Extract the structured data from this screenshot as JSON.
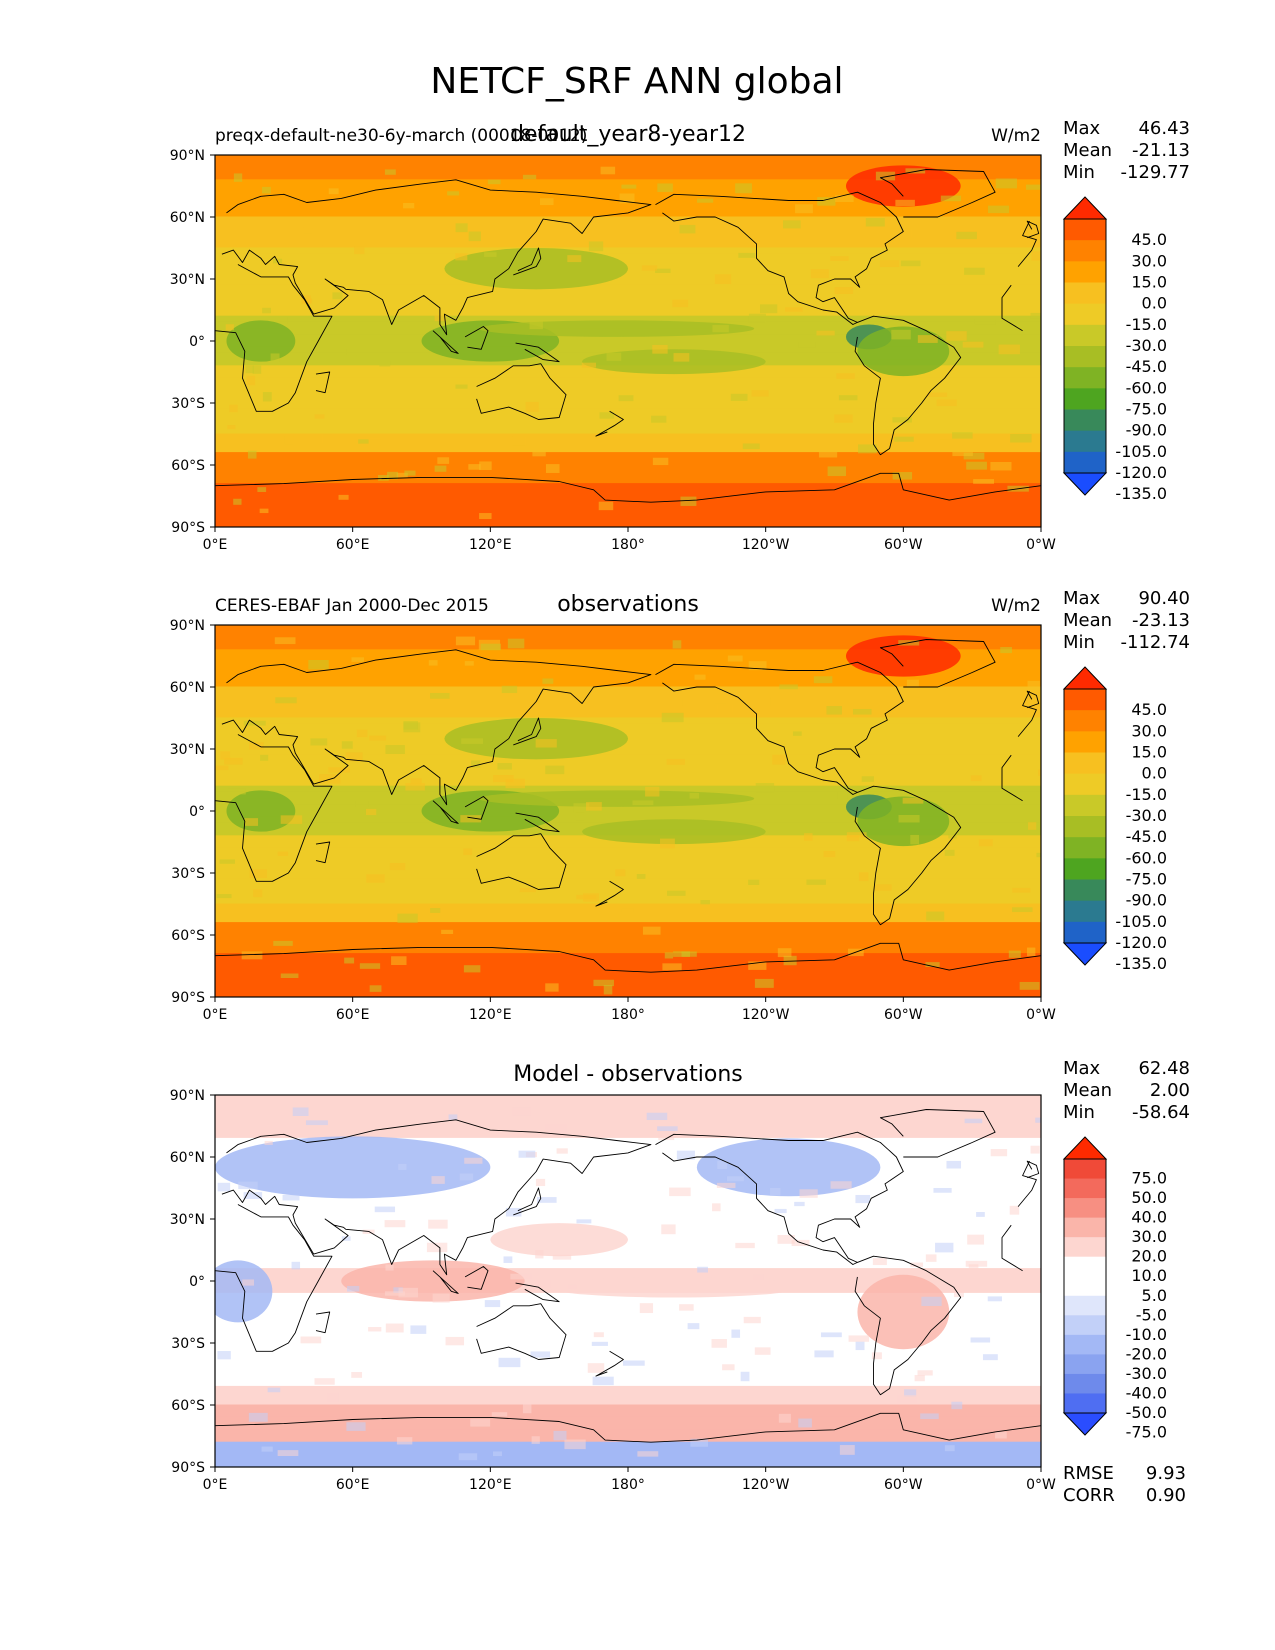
{
  "figure": {
    "title": "NETCF_SRF ANN global"
  },
  "chart_data": [
    {
      "type": "heatmap",
      "role": "test",
      "title": "default_year8-year12",
      "left_title": "preqx-default-ne30-6y-march (00018-0012)",
      "units": "W/m2",
      "stats": {
        "max": "46.43",
        "mean": "-21.13",
        "min": "-129.77"
      },
      "stats_labels": {
        "max": "Max",
        "mean": "Mean",
        "min": "Min"
      },
      "x_ticks": [
        "0°E",
        "60°E",
        "120°E",
        "180°",
        "120°W",
        "60°W",
        "0°W"
      ],
      "y_ticks": [
        "90°N",
        "60°N",
        "30°N",
        "0°",
        "30°S",
        "60°S",
        "90°S"
      ],
      "xlim": [
        0,
        360
      ],
      "ylim": [
        -90,
        90
      ],
      "colorbar": {
        "extend": "both",
        "colors": [
          "#ff2a00",
          "#ff5a00",
          "#ff8200",
          "#ffa200",
          "#f7c020",
          "#eecb26",
          "#c9c928",
          "#a8be24",
          "#7fb324",
          "#4ea520",
          "#38895a",
          "#2b7a90",
          "#1f63c8",
          "#1a4dff"
        ],
        "labels": [
          "45.0",
          "30.0",
          "15.0",
          "0.0",
          "-15.0",
          "-30.0",
          "-45.0",
          "-60.0",
          "-75.0",
          "-90.0",
          "-105.0",
          "-120.0",
          "-135.0"
        ]
      }
    },
    {
      "type": "heatmap",
      "role": "reference",
      "title": "observations",
      "left_title": "CERES-EBAF Jan 2000-Dec 2015",
      "units": "W/m2",
      "stats": {
        "max": "90.40",
        "mean": "-23.13",
        "min": "-112.74"
      },
      "stats_labels": {
        "max": "Max",
        "mean": "Mean",
        "min": "Min"
      },
      "x_ticks": [
        "0°E",
        "60°E",
        "120°E",
        "180°",
        "120°W",
        "60°W",
        "0°W"
      ],
      "y_ticks": [
        "90°N",
        "60°N",
        "30°N",
        "0°",
        "30°S",
        "60°S",
        "90°S"
      ],
      "xlim": [
        0,
        360
      ],
      "ylim": [
        -90,
        90
      ],
      "colorbar": {
        "extend": "both",
        "colors": [
          "#ff2a00",
          "#ff5a00",
          "#ff8200",
          "#ffa200",
          "#f7c020",
          "#eecb26",
          "#c9c928",
          "#a8be24",
          "#7fb324",
          "#4ea520",
          "#38895a",
          "#2b7a90",
          "#1f63c8",
          "#1a4dff"
        ],
        "labels": [
          "45.0",
          "30.0",
          "15.0",
          "0.0",
          "-15.0",
          "-30.0",
          "-45.0",
          "-60.0",
          "-75.0",
          "-90.0",
          "-105.0",
          "-120.0",
          "-135.0"
        ]
      }
    },
    {
      "type": "heatmap",
      "role": "difference",
      "title": "Model - observations",
      "left_title": "",
      "units": "",
      "stats": {
        "max": "62.48",
        "mean": "2.00",
        "min": "-58.64"
      },
      "stats_labels": {
        "max": "Max",
        "mean": "Mean",
        "min": "Min"
      },
      "extra_stats": {
        "rmse": "9.93",
        "corr": "0.90"
      },
      "extra_labels": {
        "rmse": "RMSE",
        "corr": "CORR"
      },
      "x_ticks": [
        "0°E",
        "60°E",
        "120°E",
        "180°",
        "120°W",
        "60°W",
        "0°W"
      ],
      "y_ticks": [
        "90°N",
        "60°N",
        "30°N",
        "0°",
        "30°S",
        "60°S",
        "90°S"
      ],
      "xlim": [
        0,
        360
      ],
      "ylim": [
        -90,
        90
      ],
      "colorbar": {
        "extend": "both",
        "colors": [
          "#ff2a00",
          "#f04a38",
          "#f36a5c",
          "#f78f82",
          "#fab5aa",
          "#fdd6d0",
          "#ffffff",
          "#ffffff",
          "#dfe6fb",
          "#c2d0f8",
          "#a3b8f5",
          "#8aa3f0",
          "#6e8aeb",
          "#4f6ef2",
          "#2a4dff"
        ],
        "labels": [
          "75.0",
          "50.0",
          "40.0",
          "30.0",
          "20.0",
          "10.0",
          "5.0",
          "-5.0",
          "-10.0",
          "-20.0",
          "-30.0",
          "-40.0",
          "-50.0",
          "-75.0"
        ]
      }
    }
  ]
}
